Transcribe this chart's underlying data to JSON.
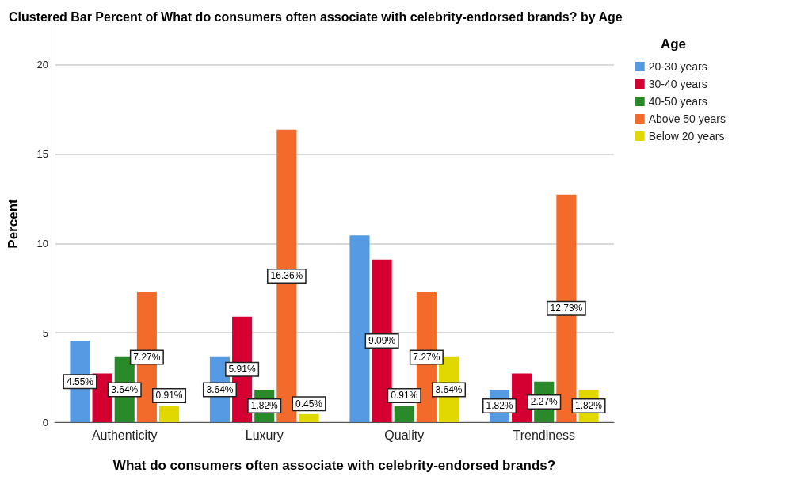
{
  "chart_data": {
    "type": "bar",
    "title": "Clustered Bar Percent of What do consumers often associate with celebrity-endorsed brands? by Age",
    "xlabel": "What do consumers often associate with celebrity-endorsed brands?",
    "ylabel": "Percent",
    "legend_title": "Age",
    "legend": "top right",
    "grid": "y",
    "ylim": [
      0,
      22.2
    ],
    "yticks": [
      0,
      5,
      10,
      15,
      20
    ],
    "categories": [
      "Authenticity",
      "Luxury",
      "Quality",
      "Trendiness"
    ],
    "series": [
      {
        "name": "20-30 years",
        "color": "#569ae4",
        "values": [
          4.55,
          3.64,
          10.45,
          1.82
        ],
        "value_labels": [
          "4.55%",
          "3.64%",
          null,
          "1.82%"
        ]
      },
      {
        "name": "30-40 years",
        "color": "#d50032",
        "values": [
          2.73,
          5.91,
          9.09,
          2.73
        ],
        "value_labels": [
          null,
          "5.91%",
          "9.09%",
          null
        ]
      },
      {
        "name": "40-50 years",
        "color": "#2a8a2a",
        "values": [
          3.64,
          1.82,
          0.91,
          2.27
        ],
        "value_labels": [
          "3.64%",
          "1.82%",
          "0.91%",
          "2.27%"
        ]
      },
      {
        "name": "Above 50 years",
        "color": "#f26b2a",
        "values": [
          7.27,
          16.36,
          7.27,
          12.73
        ],
        "value_labels": [
          "7.27%",
          "16.36%",
          "7.27%",
          "12.73%"
        ]
      },
      {
        "name": "Below 20 years",
        "color": "#e0d800",
        "values": [
          0.91,
          0.45,
          3.64,
          1.82
        ],
        "value_labels": [
          "0.91%",
          "0.45%",
          "3.64%",
          "1.82%"
        ]
      }
    ]
  }
}
